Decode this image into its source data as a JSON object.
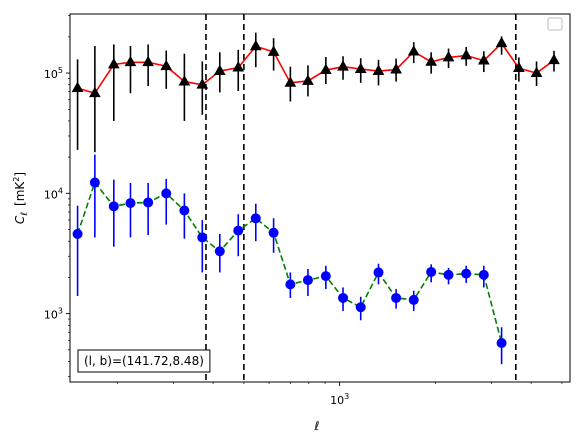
{
  "chart_data": {
    "type": "line",
    "xlabel": "ℓ",
    "ylabel": "C",
    "ylabel_sub": "ℓ",
    "ylabel_unit_base": "[mK",
    "ylabel_unit_sup": "2",
    "ylabel_unit_end": "]",
    "xscale": "log",
    "yscale": "log",
    "xlim": [
      142,
      5300
    ],
    "ylim": [
      270,
      310000
    ],
    "x_ticks": [
      {
        "value": 1000,
        "base": "10",
        "exp": "3"
      }
    ],
    "y_ticks": [
      {
        "value": 1000,
        "base": "10",
        "exp": "3"
      },
      {
        "value": 10000,
        "base": "10",
        "exp": "4"
      },
      {
        "value": 100000,
        "base": "10",
        "exp": "5"
      }
    ],
    "grid": false,
    "legend": "top-right",
    "vlines": [
      380,
      500,
      3580
    ],
    "annotation": "(l, b)=(141.72,8.48)",
    "annotation_position": "bottom-left",
    "series": [
      {
        "color": "#ff0000",
        "linestyle": "solid",
        "marker": "triangle",
        "marker_color": "#000000",
        "error_color": "#000000",
        "x": [
          150,
          170,
          195,
          220,
          250,
          285,
          325,
          370,
          420,
          480,
          545,
          620,
          700,
          795,
          905,
          1025,
          1165,
          1325,
          1505,
          1710,
          1940,
          2200,
          2500,
          2840,
          3230,
          3660,
          4160,
          4720
        ],
        "y": [
          75000,
          68000,
          118000,
          123000,
          123000,
          114000,
          85000,
          80000,
          104000,
          111000,
          167000,
          150000,
          83000,
          86000,
          106000,
          113000,
          108000,
          104000,
          107000,
          151000,
          124000,
          135000,
          140000,
          127000,
          177000,
          110000,
          100000,
          128000
        ],
        "err_lo": [
          52000,
          46000,
          78000,
          55000,
          45000,
          40000,
          45000,
          35000,
          35000,
          40000,
          55000,
          45000,
          25000,
          22000,
          25000,
          25000,
          25000,
          25000,
          22000,
          30000,
          25000,
          25000,
          25000,
          25000,
          35000,
          25000,
          22000,
          25000
        ],
        "err_hi": [
          55000,
          100000,
          55000,
          45000,
          50000,
          40000,
          60000,
          45000,
          45000,
          45000,
          50000,
          45000,
          30000,
          30000,
          30000,
          25000,
          25000,
          25000,
          25000,
          30000,
          25000,
          25000,
          25000,
          25000,
          25000,
          25000,
          25000,
          25000
        ]
      },
      {
        "color": "#008000",
        "linestyle": "dashed",
        "marker": "circle",
        "marker_color": "#0000ff",
        "error_color": "#0000ff",
        "x": [
          150,
          170,
          195,
          220,
          250,
          285,
          325,
          370,
          420,
          480,
          545,
          620,
          700,
          795,
          905,
          1025,
          1165,
          1325,
          1505,
          1710,
          1940,
          2200,
          2500,
          2840,
          3230,
          3660,
          4160,
          4720
        ],
        "y": [
          4600,
          12300,
          7800,
          8300,
          8400,
          10000,
          7200,
          4300,
          3300,
          4900,
          6200,
          4700,
          1750,
          1900,
          2050,
          1350,
          1130,
          2200,
          1350,
          1300,
          2220,
          2100,
          2150,
          2100,
          570,
          0,
          0,
          0
        ],
        "err_lo": [
          3200,
          8000,
          4200,
          4000,
          3900,
          4500,
          3000,
          2100,
          1100,
          1900,
          2200,
          1500,
          400,
          500,
          450,
          300,
          250,
          450,
          250,
          250,
          400,
          350,
          350,
          450,
          190,
          0,
          0,
          0
        ],
        "err_hi": [
          3300,
          8700,
          5200,
          3900,
          3800,
          3200,
          2800,
          1700,
          1300,
          1800,
          2000,
          1500,
          450,
          450,
          450,
          300,
          250,
          400,
          250,
          250,
          350,
          300,
          350,
          400,
          200,
          0,
          0,
          0
        ]
      }
    ]
  }
}
